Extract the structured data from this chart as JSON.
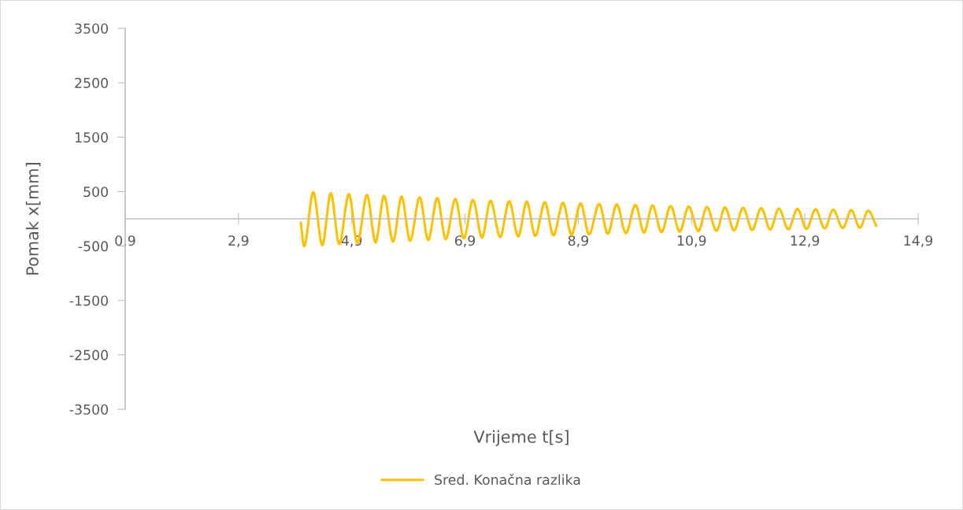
{
  "chart_data": {
    "type": "line",
    "xlabel": "Vrijeme t[s]",
    "ylabel": "Pomak x[mm]",
    "xlim": [
      0.9,
      14.9
    ],
    "xticks": [
      {
        "value": 0.9,
        "label": "0,9"
      },
      {
        "value": 2.9,
        "label": "2,9"
      },
      {
        "value": 4.9,
        "label": "4,9"
      },
      {
        "value": 6.9,
        "label": "6,9"
      },
      {
        "value": 8.9,
        "label": "8,9"
      },
      {
        "value": 10.9,
        "label": "10,9"
      },
      {
        "value": 12.9,
        "label": "12,9"
      },
      {
        "value": 14.9,
        "label": "14,9"
      }
    ],
    "ylim": [
      -3500,
      3500
    ],
    "yticks": [
      -3500,
      -2500,
      -1500,
      -500,
      500,
      1500,
      2500,
      3500
    ],
    "grid": false,
    "legend": "bottom",
    "marker": "none",
    "line_style": "solid",
    "x": [
      4.0,
      4.06,
      4.22,
      4.38,
      4.53,
      4.68,
      4.85,
      5.0,
      5.17,
      5.32,
      5.47,
      5.63,
      5.78,
      5.93,
      6.1,
      6.25,
      6.41,
      6.56,
      6.73,
      6.88,
      7.04,
      7.2,
      7.35,
      7.52,
      7.68,
      7.84,
      7.99,
      8.14,
      8.31,
      8.46,
      8.63,
      8.78,
      8.94,
      9.09,
      9.27,
      9.42,
      9.58,
      9.74,
      9.91,
      10.06,
      10.21,
      10.37,
      10.53,
      10.69,
      10.85,
      11.02,
      11.17,
      11.34,
      11.49,
      11.65,
      11.81,
      11.97,
      12.13,
      12.29,
      12.44,
      12.61,
      12.77,
      12.93,
      13.09,
      13.25,
      13.4,
      13.57,
      13.72,
      13.87,
      14.02,
      14.16
    ],
    "series": [
      {
        "name": "Sred. Konačna razlika",
        "color": "#ffc000",
        "values": [
          -70,
          -505,
          490,
          -485,
          470,
          -465,
          455,
          -450,
          440,
          -435,
          425,
          -420,
          410,
          -405,
          395,
          -390,
          380,
          -375,
          365,
          -360,
          350,
          -345,
          335,
          -335,
          325,
          -325,
          315,
          -315,
          305,
          -305,
          295,
          -295,
          285,
          -285,
          275,
          -275,
          265,
          -265,
          255,
          -255,
          245,
          -245,
          235,
          -235,
          225,
          -228,
          218,
          -220,
          210,
          -213,
          203,
          -206,
          196,
          -199,
          189,
          -192,
          182,
          -185,
          175,
          -178,
          168,
          -172,
          160,
          -165,
          150,
          -130
        ]
      }
    ]
  }
}
